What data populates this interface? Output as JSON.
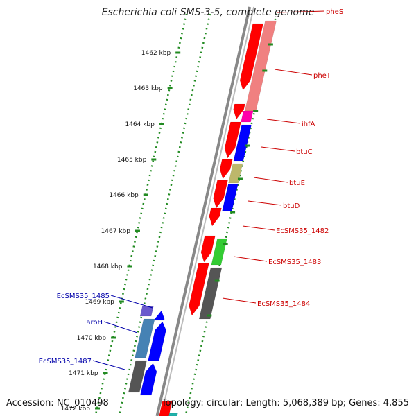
{
  "header": {
    "title": "Escherichia coli SMS-3-5, complete genome"
  },
  "footer": {
    "accession": "Accession: NC_010498",
    "topology": "Topology: circular; Length: 5,068,389 bp; Genes: 4,855"
  },
  "colors": {
    "red": "#ff0000",
    "pink": "#f08080",
    "magenta": "#ff00aa",
    "blue": "#0000ff",
    "khaki": "#bdb76b",
    "green": "#33cc33",
    "gray": "#555555",
    "steelblue": "#4682b4",
    "purple": "#6a5acd",
    "tick": "#228b22",
    "backbone": "#888888",
    "label_red": "#cc0000",
    "label_blue": "#0000aa"
  },
  "ticks": [
    {
      "label": "1462 kbp"
    },
    {
      "label": "1463 kbp"
    },
    {
      "label": "1464 kbp"
    },
    {
      "label": "1465 kbp"
    },
    {
      "label": "1466 kbp"
    },
    {
      "label": "1467 kbp"
    },
    {
      "label": "1468 kbp"
    },
    {
      "label": "1469 kbp"
    },
    {
      "label": "1470 kbp"
    },
    {
      "label": "1471 kbp"
    },
    {
      "label": "1472 kbp"
    }
  ],
  "genes_right": [
    {
      "label": "pheS"
    },
    {
      "label": "pheT"
    },
    {
      "label": "ihfA"
    },
    {
      "label": "btuC"
    },
    {
      "label": "btuE"
    },
    {
      "label": "btuD"
    },
    {
      "label": "EcSMS35_1482"
    },
    {
      "label": "EcSMS35_1483"
    },
    {
      "label": "EcSMS35_1484"
    }
  ],
  "genes_left": [
    {
      "label": "EcSMS35_1485"
    },
    {
      "label": "aroH"
    },
    {
      "label": "EcSMS35_1487"
    }
  ]
}
